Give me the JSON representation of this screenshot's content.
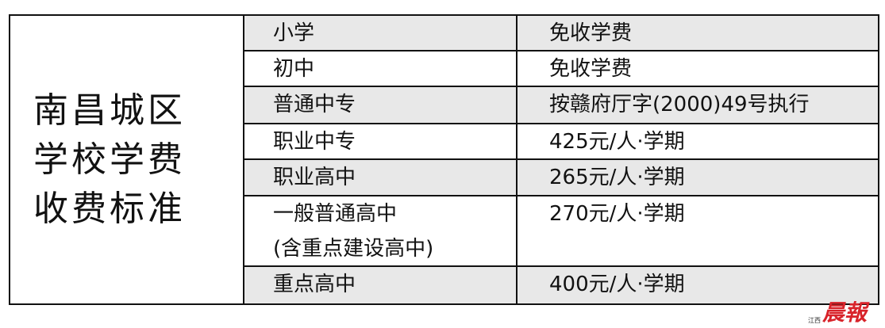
{
  "title": "南昌城区学校学费收费标准",
  "rows": [
    {
      "level": "小学",
      "fee": "免收学费"
    },
    {
      "level": "初中",
      "fee": "免收学费"
    },
    {
      "level": "普通中专",
      "fee": "按赣府厅字(2000)49号执行"
    },
    {
      "level": "职业中专",
      "fee": "425元/人·学期"
    },
    {
      "level": "职业高中",
      "fee": "265元/人·学期"
    },
    {
      "level": "一般普通高中\n(含重点建设高中)",
      "fee": "270元/人·学期"
    },
    {
      "level": "重点高中",
      "fee": "400元/人·学期"
    }
  ],
  "logo": {
    "small": "江西",
    "big": "晨報",
    "color": "#d8232a"
  },
  "colors": {
    "shade": "#e8e8e8",
    "border": "#111111"
  }
}
